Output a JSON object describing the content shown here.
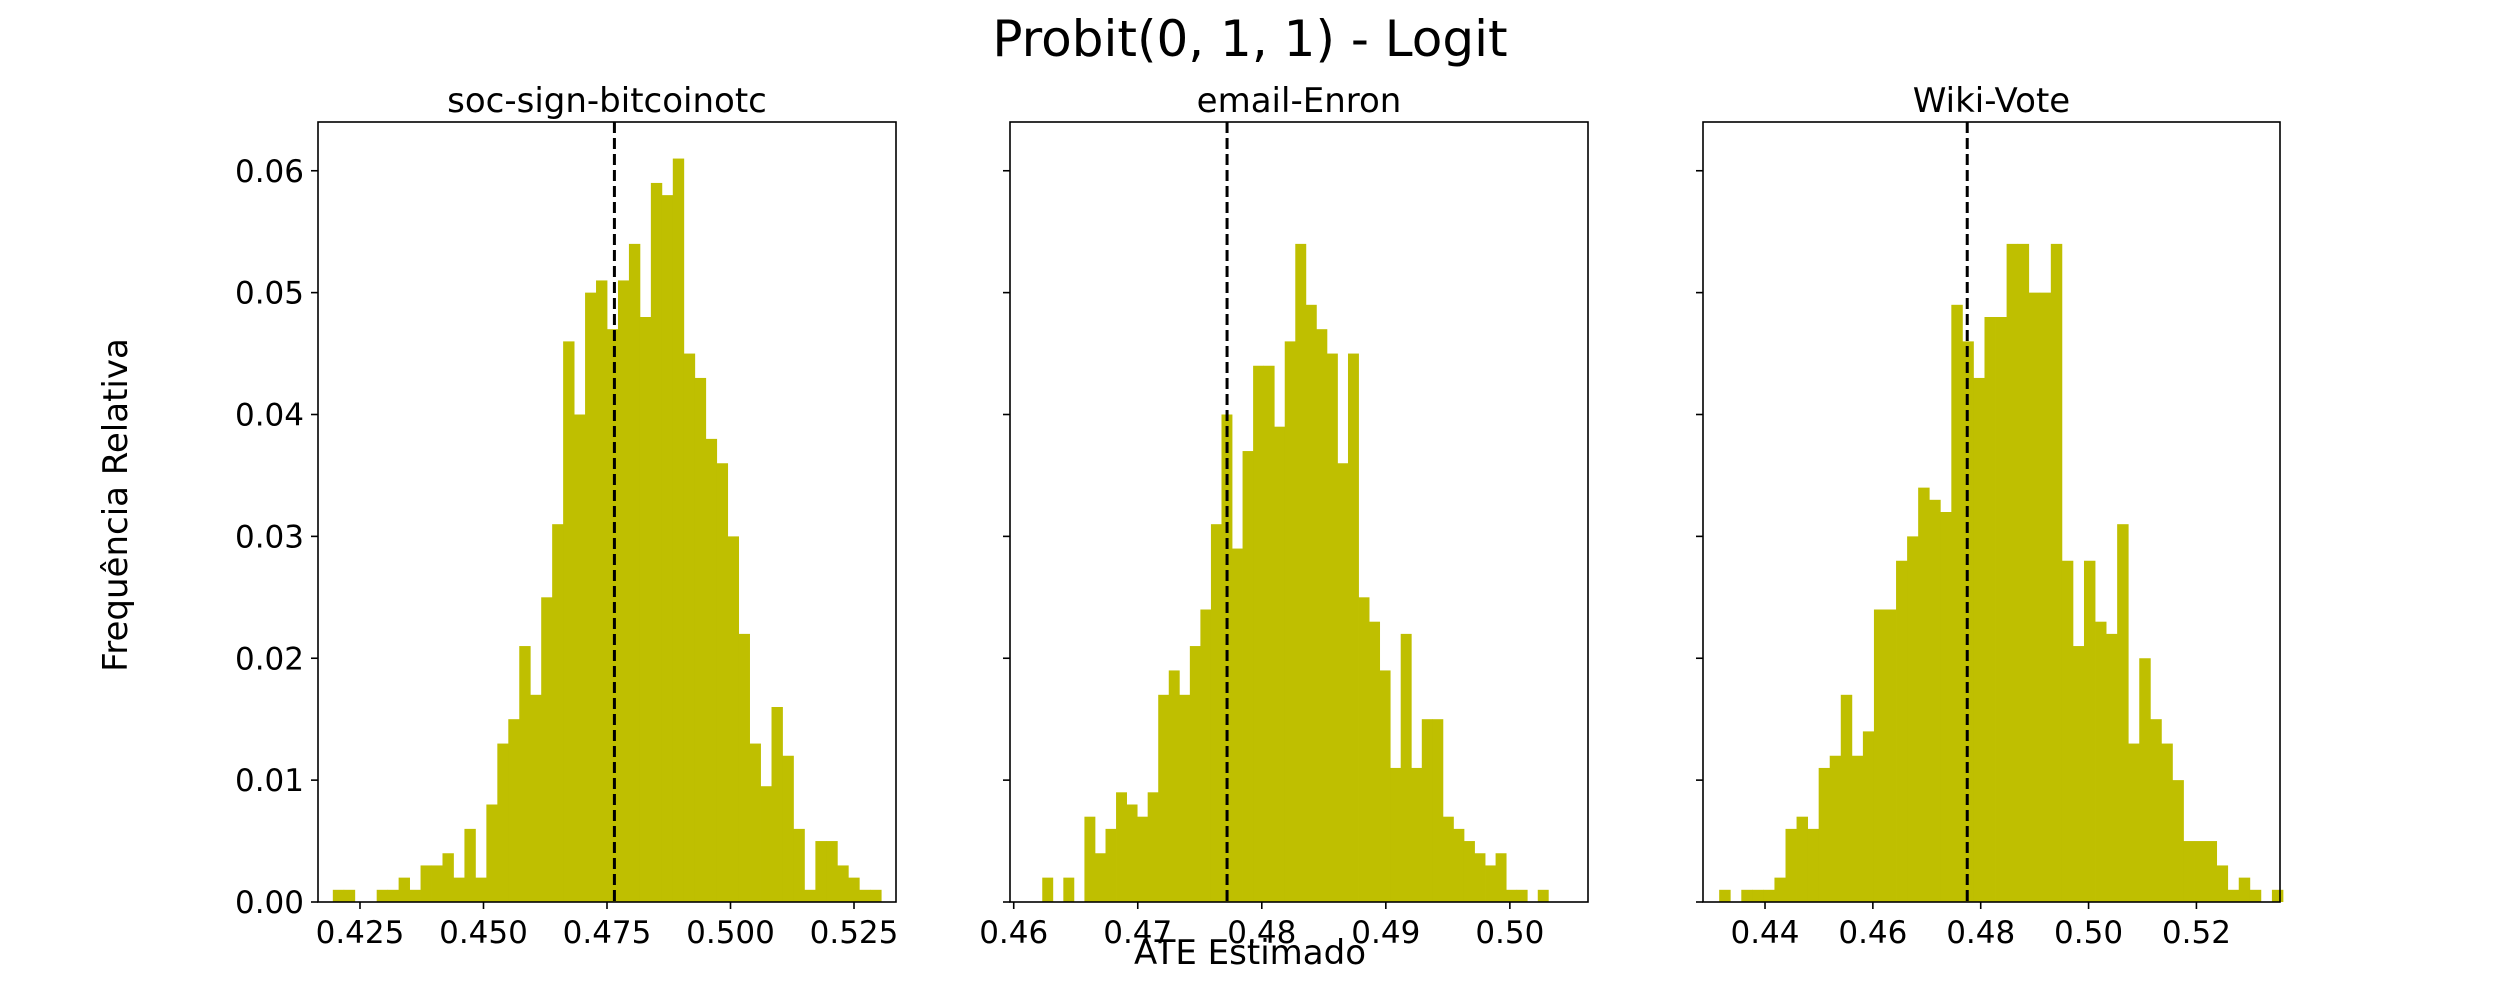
{
  "colors": {
    "bar": "#bfbf00",
    "reference_line": "#000000",
    "axes": "#000000"
  },
  "chart_data": {
    "type": "bar",
    "suptitle": "Probit(0, 1, 1) - Logit",
    "xlabel": "ATE Estimado",
    "ylabel": "Frequência Relativa",
    "sharey": true,
    "ylim": [
      0,
      0.064
    ],
    "ytick_labels": [
      "0.00",
      "0.01",
      "0.02",
      "0.03",
      "0.04",
      "0.05",
      "0.06"
    ],
    "panels": [
      {
        "title": "soc-sign-bitcoinotc",
        "xlim": [
          0.4165,
          0.5335
        ],
        "xtick_values": [
          0.425,
          0.45,
          0.475,
          0.5,
          0.525
        ],
        "xtick_labels": [
          "0.425",
          "0.450",
          "0.475",
          "0.500",
          "0.525"
        ],
        "reference_line": 0.4765,
        "bin_start": 0.4195,
        "bin_width": 0.00222,
        "values": [
          0.001,
          0.001,
          0,
          0,
          0.001,
          0.001,
          0.002,
          0.001,
          0.003,
          0.003,
          0.004,
          0.002,
          0.006,
          0.002,
          0.008,
          0.013,
          0.015,
          0.021,
          0.017,
          0.025,
          0.031,
          0.046,
          0.04,
          0.05,
          0.051,
          0.047,
          0.051,
          0.054,
          0.048,
          0.059,
          0.058,
          0.061,
          0.045,
          0.043,
          0.038,
          0.036,
          0.03,
          0.022,
          0.013,
          0.0095,
          0.016,
          0.012,
          0.006,
          0.001,
          0.005,
          0.005,
          0.003,
          0.002,
          0.001,
          0.001
        ]
      },
      {
        "title": "email-Enron",
        "xlim": [
          0.4597,
          0.5063
        ],
        "xtick_values": [
          0.46,
          0.47,
          0.48,
          0.49,
          0.5
        ],
        "xtick_labels": [
          "0.46",
          "0.47",
          "0.48",
          "0.49",
          "0.50"
        ],
        "reference_line": 0.4772,
        "bin_start": 0.4623,
        "bin_width": 0.00085,
        "values": [
          0.002,
          0,
          0.002,
          0,
          0.007,
          0.004,
          0.006,
          0.009,
          0.008,
          0.007,
          0.009,
          0.017,
          0.019,
          0.017,
          0.021,
          0.024,
          0.031,
          0.04,
          0.029,
          0.037,
          0.044,
          0.044,
          0.039,
          0.046,
          0.054,
          0.049,
          0.047,
          0.045,
          0.036,
          0.045,
          0.025,
          0.023,
          0.019,
          0.011,
          0.022,
          0.011,
          0.015,
          0.015,
          0.007,
          0.006,
          0.005,
          0.004,
          0.003,
          0.004,
          0.001,
          0.001,
          0,
          0.001
        ]
      },
      {
        "title": "Wiki-Vote",
        "xlim": [
          0.4285,
          0.5355
        ],
        "xtick_values": [
          0.44,
          0.46,
          0.48,
          0.5,
          0.52
        ],
        "xtick_labels": [
          "0.44",
          "0.46",
          "0.48",
          "0.50",
          "0.52"
        ],
        "reference_line": 0.4775,
        "bin_start": 0.4315,
        "bin_width": 0.00205,
        "values": [
          0.001,
          0,
          0.001,
          0.001,
          0.001,
          0.002,
          0.006,
          0.007,
          0.006,
          0.011,
          0.012,
          0.017,
          0.012,
          0.014,
          0.024,
          0.024,
          0.028,
          0.03,
          0.034,
          0.033,
          0.032,
          0.049,
          0.046,
          0.043,
          0.048,
          0.048,
          0.054,
          0.054,
          0.05,
          0.05,
          0.054,
          0.028,
          0.021,
          0.028,
          0.023,
          0.022,
          0.031,
          0.013,
          0.02,
          0.015,
          0.013,
          0.01,
          0.005,
          0.005,
          0.005,
          0.003,
          0.001,
          0.002,
          0.001,
          0,
          0.001
        ]
      }
    ]
  }
}
